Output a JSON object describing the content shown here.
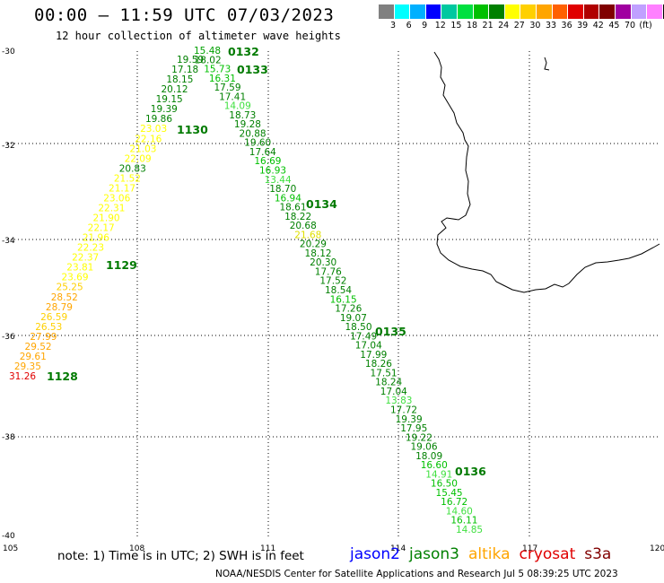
{
  "header": {
    "title": "00:00 – 11:59 UTC 07/03/2023",
    "subtitle": "12 hour collection of altimeter wave heights"
  },
  "legend": {
    "colors": [
      "#808080",
      "#00ffff",
      "#00b0ff",
      "#0000ff",
      "#00c8a0",
      "#00e040",
      "#00c000",
      "#008000",
      "#ffff00",
      "#ffd000",
      "#ffa500",
      "#ff6000",
      "#e00000",
      "#b00000",
      "#800000",
      "#a000a0",
      "#c0a0ff",
      "#ff80ff",
      "#000000"
    ],
    "labels": [
      "3",
      "6",
      "9",
      "12",
      "15",
      "18",
      "21",
      "24",
      "27",
      "30",
      "33",
      "36",
      "39",
      "42",
      "45",
      "70",
      "(ft)"
    ]
  },
  "axes": {
    "lon_ticks": [
      "105",
      "108",
      "111",
      "114",
      "117",
      "120"
    ],
    "lat_ticks": [
      "-30",
      "-32",
      "-34",
      "-36",
      "-38",
      "-40"
    ]
  },
  "track_labels": {
    "northeast": [
      "0132",
      "0133",
      "0134",
      "0135",
      "0136"
    ],
    "southwest": [
      "1128",
      "1129",
      "1130"
    ]
  },
  "track_se": {
    "values": [
      "15.48",
      "18.02",
      "15.73",
      "16.31",
      "17.59",
      "17.41",
      "14.09",
      "18.73",
      "19.28",
      "20.88",
      "19.60",
      "17.64",
      "16.69",
      "16.93",
      "13.44",
      "18.70",
      "16.94",
      "18.61",
      "18.22",
      "20.68",
      "21.68",
      "20.29",
      "18.12",
      "20.30",
      "17.76",
      "17.52",
      "18.54",
      "16.15",
      "17.26",
      "19.07",
      "18.50",
      "17.49",
      "17.04",
      "17.99",
      "18.26",
      "17.51",
      "18.24",
      "17.04",
      "13.83",
      "17.72",
      "19.39",
      "17.95",
      "19.22",
      "19.06",
      "18.09",
      "16.60",
      "14.91",
      "16.50",
      "15.45",
      "16.72",
      "14.60",
      "16.11",
      "14.85"
    ],
    "colors": [
      "#00a000",
      "#008000",
      "#00c000",
      "#00c000",
      "#008000",
      "#008000",
      "#40e040",
      "#008000",
      "#008000",
      "#008000",
      "#008000",
      "#008000",
      "#00c000",
      "#00c000",
      "#40e040",
      "#008000",
      "#00c000",
      "#008000",
      "#008000",
      "#008000",
      "#e0e000",
      "#008000",
      "#008000",
      "#008000",
      "#008000",
      "#008000",
      "#008000",
      "#00c000",
      "#008000",
      "#008000",
      "#008000",
      "#008000",
      "#008000",
      "#008000",
      "#008000",
      "#008000",
      "#008000",
      "#008000",
      "#40e040",
      "#008000",
      "#008000",
      "#008000",
      "#008000",
      "#008000",
      "#008000",
      "#00c000",
      "#40e040",
      "#00c000",
      "#00c000",
      "#00c000",
      "#40e040",
      "#00c000",
      "#40e040"
    ]
  },
  "track_sw": {
    "values": [
      "19.59",
      "17.18",
      "18.15",
      "20.12",
      "19.15",
      "19.39",
      "19.86",
      "23.03",
      "22.16",
      "21.03",
      "22.09",
      "20.83",
      "21.52",
      "21.17",
      "23.06",
      "22.31",
      "21.90",
      "22.17",
      "21.96",
      "22.23",
      "22.37",
      "23.81",
      "23.69",
      "25.25",
      "28.52",
      "28.79",
      "26.59",
      "26.53",
      "27.99",
      "29.52",
      "29.61",
      "29.35",
      "31.26"
    ],
    "colors": [
      "#008000",
      "#008000",
      "#008000",
      "#008000",
      "#008000",
      "#008000",
      "#008000",
      "#ffff00",
      "#ffff00",
      "#ffff00",
      "#ffff00",
      "#008000",
      "#ffff00",
      "#ffff00",
      "#ffff00",
      "#ffff00",
      "#ffff00",
      "#ffff00",
      "#ffff00",
      "#ffff00",
      "#ffff00",
      "#ffff00",
      "#ffff00",
      "#ffd000",
      "#ffa500",
      "#ffa500",
      "#ffd000",
      "#ffd000",
      "#ffa500",
      "#ffa500",
      "#ffa500",
      "#ffa500",
      "#e00000"
    ]
  },
  "footer": {
    "note": "note: 1) Time is in UTC; 2) SWH is in feet",
    "satellites": [
      {
        "name": "jason2",
        "color": "#0000ff"
      },
      {
        "name": "jason3",
        "color": "#008000"
      },
      {
        "name": "altika",
        "color": "#ffa500"
      },
      {
        "name": "cryosat",
        "color": "#e00000"
      },
      {
        "name": "s3a",
        "color": "#800000"
      }
    ],
    "credit": "NOAA/NESDIS Center for Satellite Applications and Research   Jul  5 08:39:25 UTC 2023"
  }
}
